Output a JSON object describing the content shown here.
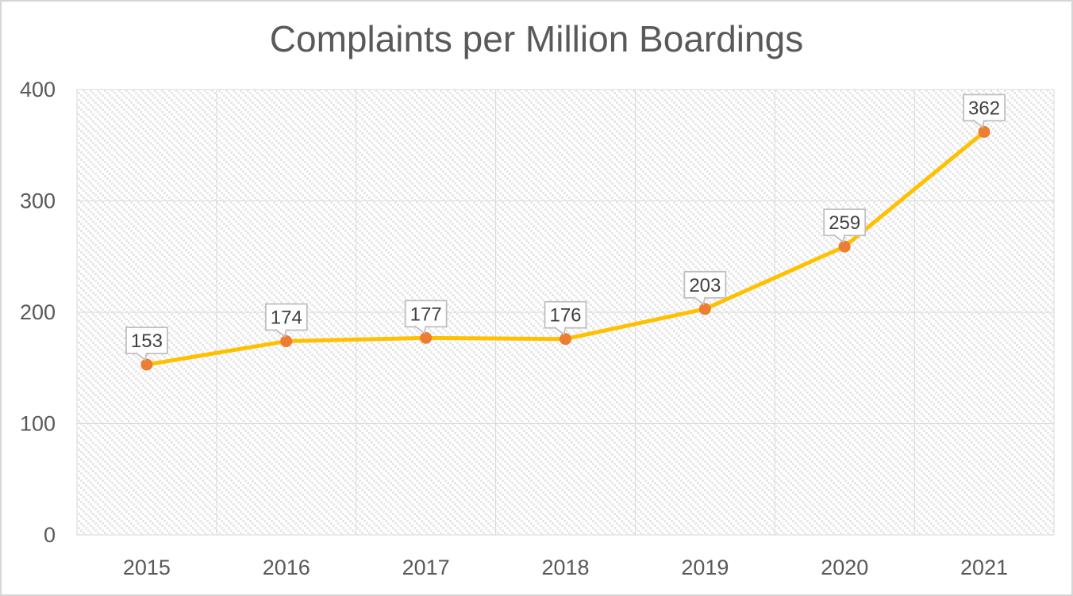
{
  "chart_data": {
    "type": "line",
    "title": "Complaints per Million Boardings",
    "categories": [
      "2015",
      "2016",
      "2017",
      "2018",
      "2019",
      "2020",
      "2021"
    ],
    "series": [
      {
        "name": "Complaints per Million Boardings",
        "values": [
          153,
          174,
          177,
          176,
          203,
          259,
          362
        ]
      }
    ],
    "data_labels": [
      "153",
      "174",
      "177",
      "176",
      "203",
      "259",
      "362"
    ],
    "xlabel": "",
    "ylabel": "",
    "ylim": [
      0,
      400
    ],
    "y_ticks": [
      0,
      100,
      200,
      300,
      400
    ],
    "grid": true,
    "legend": "none",
    "colors": {
      "line": "#FFC000",
      "marker": "#ED7D31",
      "gridline": "#D9D9D9",
      "axis_text": "#595959",
      "title_text": "#595959",
      "data_label_text": "#404040",
      "callout_border": "#BFBFBF",
      "callout_fill": "#FFFFFF",
      "plot_hatch": "#E8E8E8",
      "background": "#FFFFFF",
      "frame_border": "#D6D6D6"
    }
  }
}
